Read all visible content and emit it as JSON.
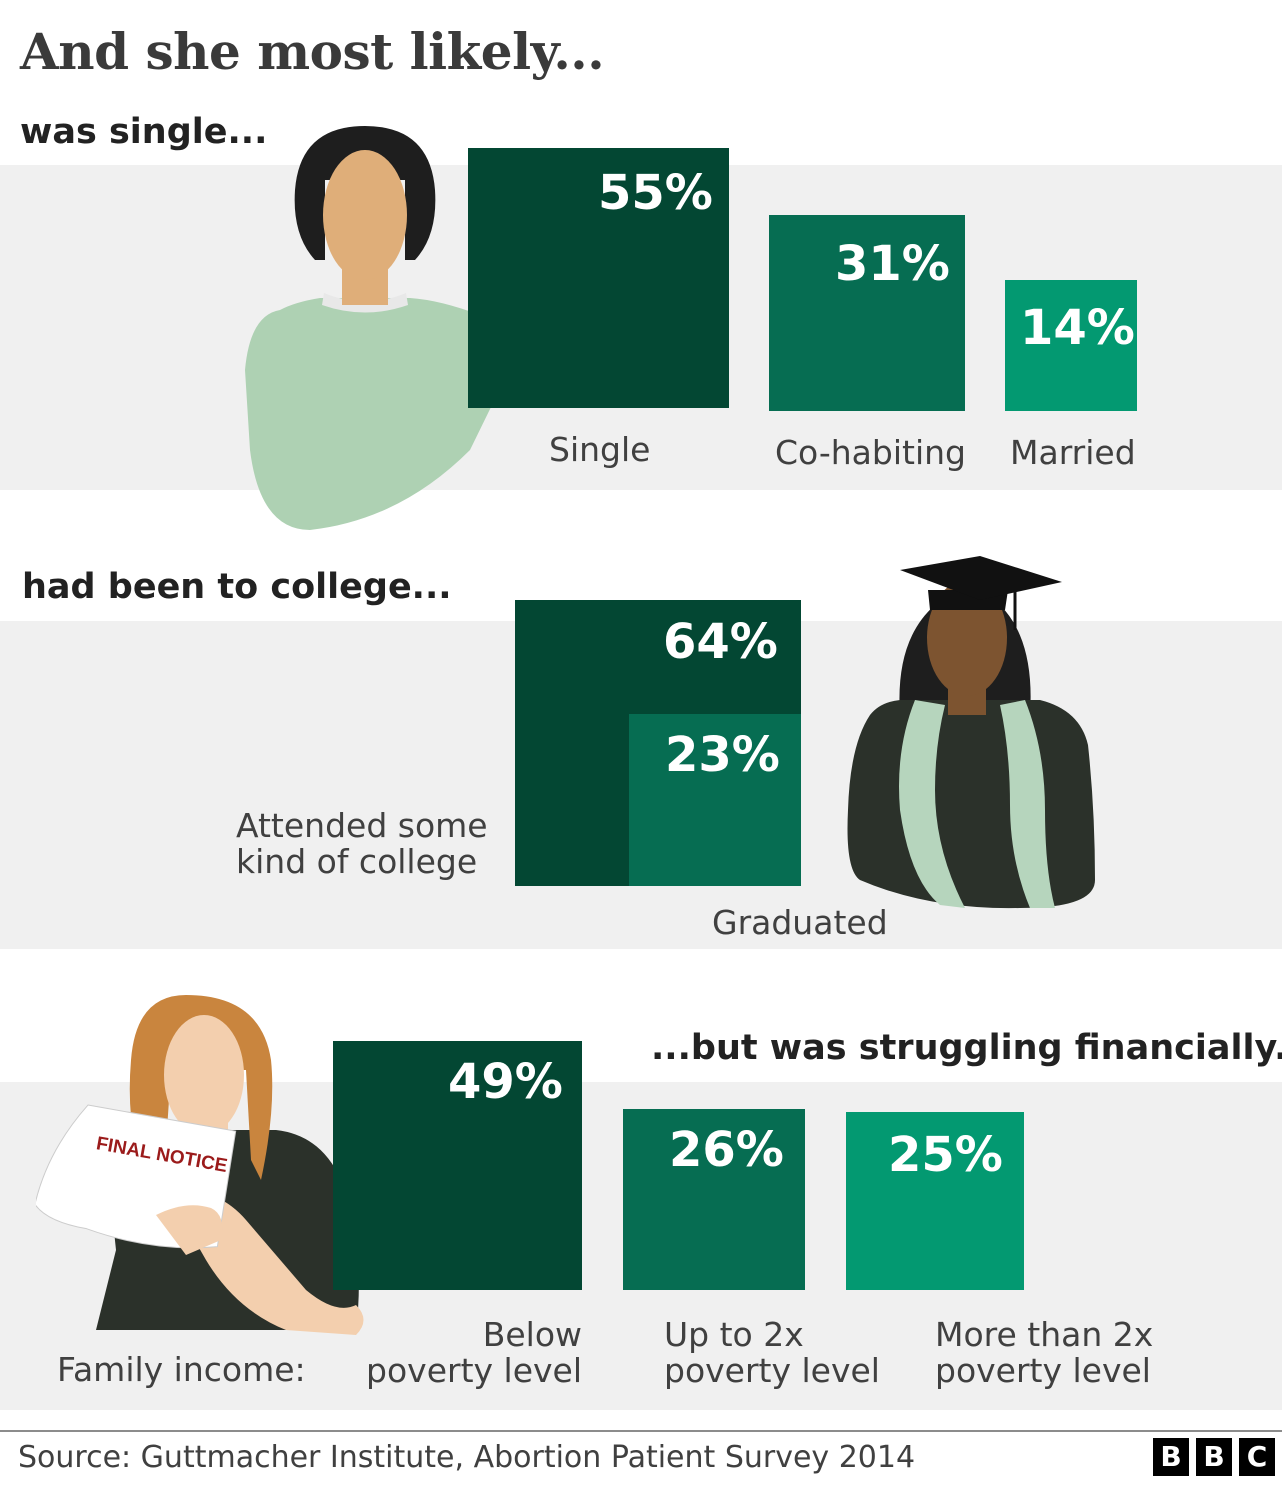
{
  "title": "And she most likely...",
  "colors": {
    "dark": "#034733",
    "mid": "#066d52",
    "light": "#039971",
    "band": "#f0f0f0"
  },
  "chart_data": [
    {
      "type": "bar",
      "heading": "was single...",
      "categories": [
        "Single",
        "Co-habiting",
        "Married"
      ],
      "values": [
        55,
        31,
        14
      ],
      "value_labels": [
        "55%",
        "31%",
        "14%"
      ]
    },
    {
      "type": "bar",
      "heading": "had been to college...",
      "categories": [
        "Attended some kind of college",
        "Graduated"
      ],
      "values": [
        64,
        23
      ],
      "value_labels": [
        "64%",
        "23%"
      ]
    },
    {
      "type": "bar",
      "heading": "...but was struggling financially.",
      "axis_label": "Family income:",
      "categories": [
        "Below poverty level",
        "Up to 2x poverty level",
        "More than 2x poverty level"
      ],
      "values": [
        49,
        26,
        25
      ],
      "value_labels": [
        "49%",
        "26%",
        "25%"
      ]
    }
  ],
  "illustrations": {
    "paper_text": "FINAL NOTICE"
  },
  "footer": {
    "source": "Source: Guttmacher Institute, Abortion Patient Survey 2014",
    "logo": [
      "B",
      "B",
      "C"
    ]
  }
}
